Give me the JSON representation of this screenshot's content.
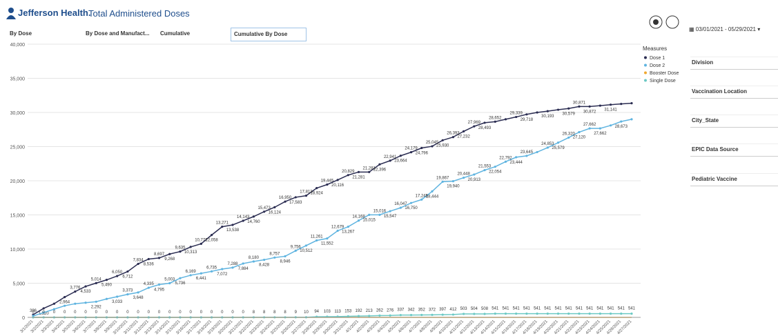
{
  "header": {
    "brand": "Jefferson Health.",
    "title": "Total Administered Doses"
  },
  "tabs": [
    "By Dose",
    "By Dose and Manufact...",
    "Cumulative",
    "Cumulative By Dose"
  ],
  "date_range": "03/01/2021 - 05/29/2021",
  "filters": [
    "Division",
    "Vaccination Location",
    "City_State",
    "EPIC Data Source",
    "Pediatric Vaccine"
  ],
  "chart_data": {
    "type": "line",
    "legend_title": "Measures",
    "legend": "top-right",
    "grid": true,
    "categories": [
      "3/1/2021",
      "3/2/2021",
      "3/3/2021",
      "3/4/2021",
      "3/5/2021",
      "3/6/2021",
      "3/7/2021",
      "3/8/2021",
      "3/9/2021",
      "3/10/2021",
      "3/11/2021",
      "3/12/2021",
      "3/13/2021",
      "3/14/2021",
      "3/15/2021",
      "3/16/2021",
      "3/17/2021",
      "3/18/2021",
      "3/19/2021",
      "3/20/2021",
      "3/21/2021",
      "3/22/2021",
      "3/23/2021",
      "3/24/2021",
      "3/25/2021",
      "3/26/2021",
      "3/27/2021",
      "3/28/2021",
      "3/29/2021",
      "3/30/2021",
      "3/31/2021",
      "4/1/2021",
      "4/2/2021",
      "4/3/2021",
      "4/4/2021",
      "4/5/2021",
      "4/6/2021",
      "4/7/2021",
      "4/8/2021",
      "4/9/2021",
      "4/10/2021",
      "4/11/2021",
      "4/12/2021",
      "4/13/2021",
      "4/14/2021",
      "4/15/2021",
      "4/16/2021",
      "4/17/2021",
      "4/18/2021",
      "4/19/2021",
      "4/20/2021",
      "4/21/2021",
      "4/22/2021",
      "4/23/2021",
      "4/24/2021",
      "4/25/2021",
      "4/26/2021",
      "4/27/2021"
    ],
    "ylim": [
      0,
      40000
    ],
    "yticks": [
      0,
      {
        "value": 5000,
        "label": "5,000"
      },
      {
        "value": 10000,
        "label": "10,000"
      },
      {
        "value": 15000,
        "label": "15,000"
      },
      {
        "value": 20000,
        "label": "20,000"
      },
      {
        "value": 25000,
        "label": "25,000"
      },
      {
        "value": 30000,
        "label": "30,000"
      },
      {
        "value": 35000,
        "label": "35,000"
      },
      {
        "value": 40000,
        "label": "40,000"
      }
    ],
    "series": [
      {
        "name": "Dose 1",
        "color": "#2b2d52",
        "markers": true,
        "values": [
          396,
          1320,
          2000,
          2964,
          3776,
          4533,
          5014,
          5490,
          6050,
          6712,
          7834,
          8536,
          8697,
          9268,
          9635,
          10313,
          10772,
          12058,
          13271,
          13538,
          14143,
          14760,
          15473,
          16124,
          16950,
          17583,
          17813,
          18924,
          19445,
          20116,
          20829,
          21281,
          21281,
          22396,
          22941,
          23664,
          24179,
          24796,
          25045,
          25930,
          26393,
          27232,
          27969,
          28493,
          28652,
          29000,
          29339,
          29718,
          30000,
          30193,
          30400,
          30579,
          30871,
          30872,
          31000,
          31141,
          31250,
          31350
        ],
        "value_labels": [
          "396",
          "1,320",
          null,
          "2,964",
          "3,776",
          "4,533",
          "5,014",
          "5,490",
          "6,050",
          "6,712",
          "7,834",
          "8,536",
          "8,697",
          "9,268",
          "9,635",
          "10,313",
          "10,772",
          "12,058",
          "13,271",
          "13,538",
          "14,143",
          "14,760",
          "15,473",
          "16,124",
          "16,950",
          "17,583",
          "17,813",
          "18,924",
          "19,445",
          "20,116",
          "20,829",
          "21,281",
          "21,281",
          "22,396",
          "22,941",
          "23,664",
          "24,179",
          "24,796",
          "25,045",
          "25,930",
          "26,393",
          "27,232",
          "27,969",
          "28,493",
          "28,652",
          null,
          "29,339",
          "29,718",
          null,
          "30,193",
          null,
          "30,579",
          "30,871",
          "30,872",
          null,
          "31,141",
          null,
          null
        ]
      },
      {
        "name": "Dose 2",
        "color": "#5fb4e0",
        "markers": true,
        "values": [
          200,
          700,
          1200,
          1700,
          2000,
          2150,
          2292,
          2700,
          3033,
          3373,
          3648,
          4335,
          4795,
          5003,
          5736,
          6169,
          6441,
          6735,
          7072,
          7288,
          7884,
          8180,
          8428,
          8757,
          8946,
          9756,
          10512,
          11261,
          11552,
          12679,
          13267,
          14168,
          15015,
          15016,
          15547,
          16047,
          16750,
          17245,
          18444,
          19867,
          19940,
          20448,
          20913,
          21553,
          22054,
          22792,
          23444,
          23645,
          24200,
          24853,
          25579,
          26320,
          27120,
          27662,
          27662,
          28100,
          28673,
          29000
        ],
        "value_labels": [
          null,
          null,
          null,
          null,
          null,
          null,
          "2,292",
          null,
          "3,033",
          "3,373",
          "3,648",
          "4,335",
          "4,795",
          "5,003",
          "5,736",
          "6,169",
          "6,441",
          "6,735",
          "7,072",
          "7,288",
          "7,884",
          "8,180",
          "8,428",
          "8,757",
          "8,946",
          "9,756",
          "10,512",
          "11,261",
          "11,552",
          "12,679",
          "13,267",
          "14,168",
          "15,015",
          "15,016",
          "15,547",
          "16,047",
          "16,750",
          "17,245",
          "18,444",
          "19,867",
          "19,940",
          "20,448",
          "20,913",
          "21,553",
          "22,054",
          "22,792",
          "23,444",
          "23,645",
          null,
          "24,853",
          "25,579",
          "26,320",
          "27,120",
          "27,662",
          "27,662",
          null,
          "28,673",
          null
        ]
      },
      {
        "name": "Booster Dose",
        "color": "#f0a830",
        "markers": false,
        "values": [
          0,
          0,
          0,
          0,
          0,
          0,
          0,
          0,
          0,
          0,
          0,
          0,
          0,
          0,
          0,
          0,
          0,
          0,
          0,
          0,
          0,
          0,
          0,
          0,
          0,
          0,
          0,
          0,
          0,
          0,
          0,
          0,
          0,
          0,
          0,
          0,
          0,
          0,
          0,
          0,
          0,
          0,
          0,
          0,
          0,
          0,
          0,
          0,
          0,
          0,
          0,
          0,
          0,
          0,
          0,
          0,
          0,
          0
        ]
      },
      {
        "name": "Single Dose",
        "color": "#6cc9c4",
        "markers": true,
        "show_labels": true,
        "values": [
          0,
          0,
          0,
          0,
          0,
          0,
          0,
          0,
          0,
          0,
          0,
          0,
          0,
          0,
          0,
          0,
          0,
          0,
          0,
          0,
          0,
          8,
          8,
          8,
          8,
          9,
          10,
          94,
          103,
          113,
          153,
          192,
          213,
          262,
          276,
          337,
          342,
          352,
          372,
          397,
          412,
          503,
          504,
          508,
          541,
          541,
          541,
          541,
          541,
          541,
          541,
          541,
          541,
          541,
          541,
          541,
          541,
          541
        ]
      }
    ]
  }
}
